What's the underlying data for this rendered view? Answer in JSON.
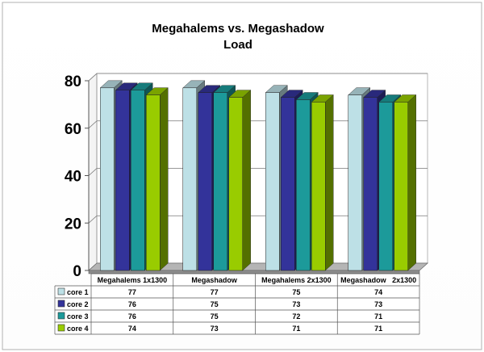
{
  "chart_data": {
    "type": "bar",
    "title": "Megahalems vs. Megashadow",
    "subtitle": "Load",
    "categories": [
      "Megahalems 1x1300",
      "Megashadow",
      "Megahalems 2x1300",
      "Megashadow   2x1300"
    ],
    "series": [
      {
        "name": "core 1",
        "values": [
          77,
          77,
          75,
          74
        ],
        "color": "#bde0e6"
      },
      {
        "name": "core 2",
        "values": [
          76,
          75,
          73,
          73
        ],
        "color": "#33339a"
      },
      {
        "name": "core 3",
        "values": [
          76,
          75,
          72,
          71
        ],
        "color": "#1c9a9a"
      },
      {
        "name": "core 4",
        "values": [
          74,
          73,
          71,
          71
        ],
        "color": "#99cc00"
      }
    ],
    "ylim": [
      0,
      80
    ],
    "yticks": [
      0,
      20,
      40,
      60,
      80
    ],
    "grid": true,
    "legend": "data-table-left",
    "three_d": true
  }
}
